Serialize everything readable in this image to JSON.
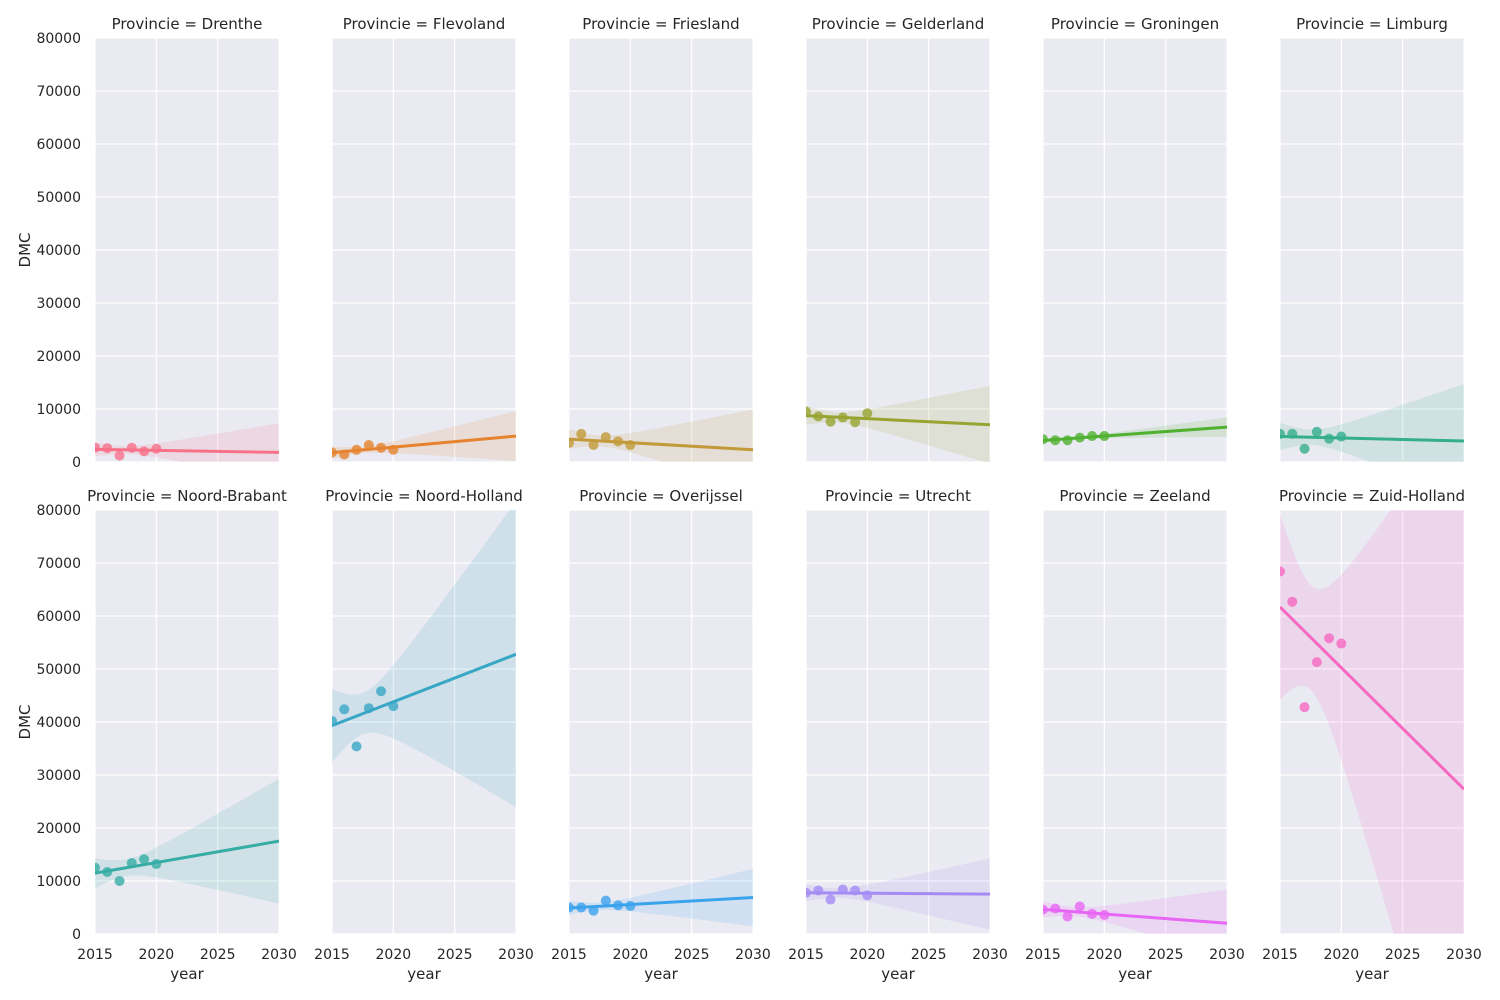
{
  "chart_data": {
    "type": "scatter",
    "subtype": "faceted regression (lmplot) with confidence bands",
    "facet_label_prefix": "Provincie = ",
    "xlabel": "year",
    "ylabel": "DMC",
    "xlim": [
      2015,
      2030
    ],
    "ylim": [
      0,
      80000
    ],
    "xticks": [
      2015,
      2020,
      2025,
      2030
    ],
    "yticks": [
      0,
      10000,
      20000,
      30000,
      40000,
      50000,
      60000,
      70000,
      80000
    ],
    "grid": true,
    "x": [
      2015,
      2016,
      2017,
      2018,
      2019,
      2020
    ],
    "series": [
      {
        "name": "Drenthe",
        "color": "#f77189",
        "values": [
          2700,
          2600,
          1200,
          2700,
          2000,
          2500
        ]
      },
      {
        "name": "Flevoland",
        "color": "#e5832f",
        "values": [
          1800,
          1400,
          2300,
          3200,
          2700,
          2300
        ]
      },
      {
        "name": "Friesland",
        "color": "#c29a3a",
        "values": [
          3600,
          5300,
          3200,
          4700,
          3900,
          3200
        ]
      },
      {
        "name": "Gelderland",
        "color": "#97a431",
        "values": [
          9500,
          8600,
          7600,
          8400,
          7500,
          9200
        ]
      },
      {
        "name": "Groningen",
        "color": "#50b131",
        "values": [
          4300,
          4100,
          4100,
          4600,
          4900,
          4900
        ]
      },
      {
        "name": "Limburg",
        "color": "#34ae8d",
        "values": [
          5300,
          5300,
          2500,
          5700,
          4400,
          4800
        ]
      },
      {
        "name": "Noord-Brabant",
        "color": "#36ada4",
        "values": [
          12500,
          11700,
          10000,
          13400,
          14100,
          13200
        ]
      },
      {
        "name": "Noord-Holland",
        "color": "#38a7c5",
        "values": [
          40200,
          42400,
          35400,
          42600,
          45800,
          43000
        ]
      },
      {
        "name": "Overijssel",
        "color": "#3ba3ec",
        "values": [
          5000,
          5000,
          4400,
          6300,
          5400,
          5300
        ]
      },
      {
        "name": "Utrecht",
        "color": "#a48cf4",
        "values": [
          7800,
          8200,
          6500,
          8400,
          8200,
          7300
        ]
      },
      {
        "name": "Zeeland",
        "color": "#e866f4",
        "values": [
          4600,
          4800,
          3300,
          5200,
          3800,
          3600
        ]
      },
      {
        "name": "Zuid-Holland",
        "color": "#f668c2",
        "values": [
          68400,
          62700,
          42800,
          51300,
          55800,
          54800
        ]
      }
    ]
  }
}
